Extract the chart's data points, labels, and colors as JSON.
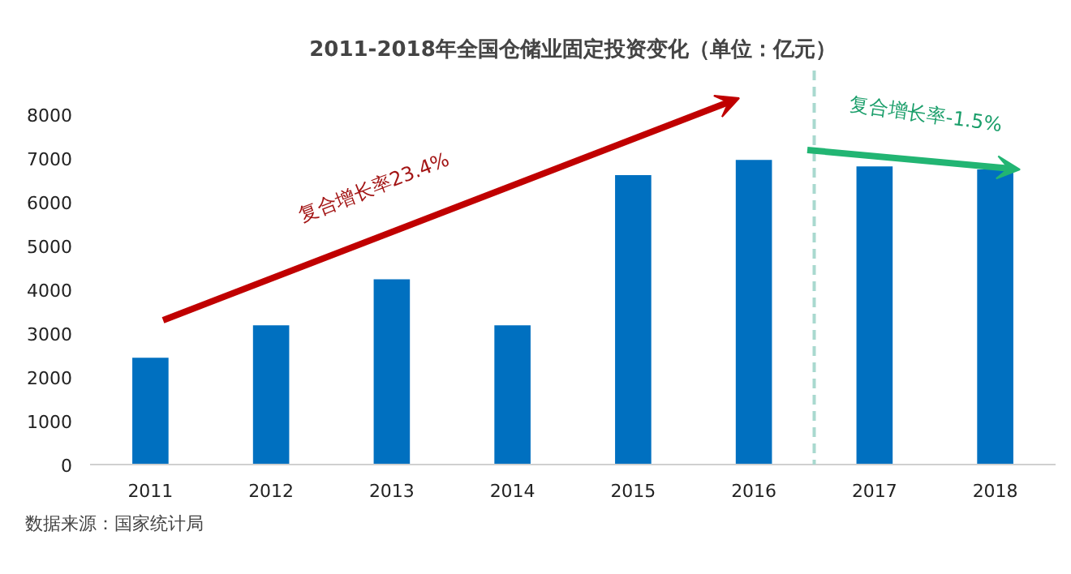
{
  "chart_data": {
    "type": "bar",
    "title": "2011-2018年全国仓储业固定投资变化（单位：亿元）",
    "x": [
      2011,
      2012,
      2013,
      2014,
      2015,
      2016,
      2017,
      2018
    ],
    "values": [
      2440,
      3180,
      4230,
      3180,
      6610,
      6960,
      6810,
      6740
    ],
    "color": "#0070c0",
    "xlim": [
      2010.5,
      2018.5
    ],
    "xticks": [
      2011,
      2012,
      2013,
      2014,
      2015,
      2016,
      2017,
      2018
    ],
    "ylim": [
      0,
      9000
    ],
    "yticks": [
      0,
      1000,
      2000,
      3000,
      4000,
      5000,
      6000,
      7000,
      8000
    ],
    "grid": false,
    "ref_lines": [
      {
        "axis": "x",
        "value": 2016.5,
        "color": "#a9d9cf",
        "line_style": "dashed"
      }
    ],
    "annotations": [
      "复合增长率23.4%",
      "复合增长率-1.5%",
      "数据来源：国家统计局"
    ]
  }
}
